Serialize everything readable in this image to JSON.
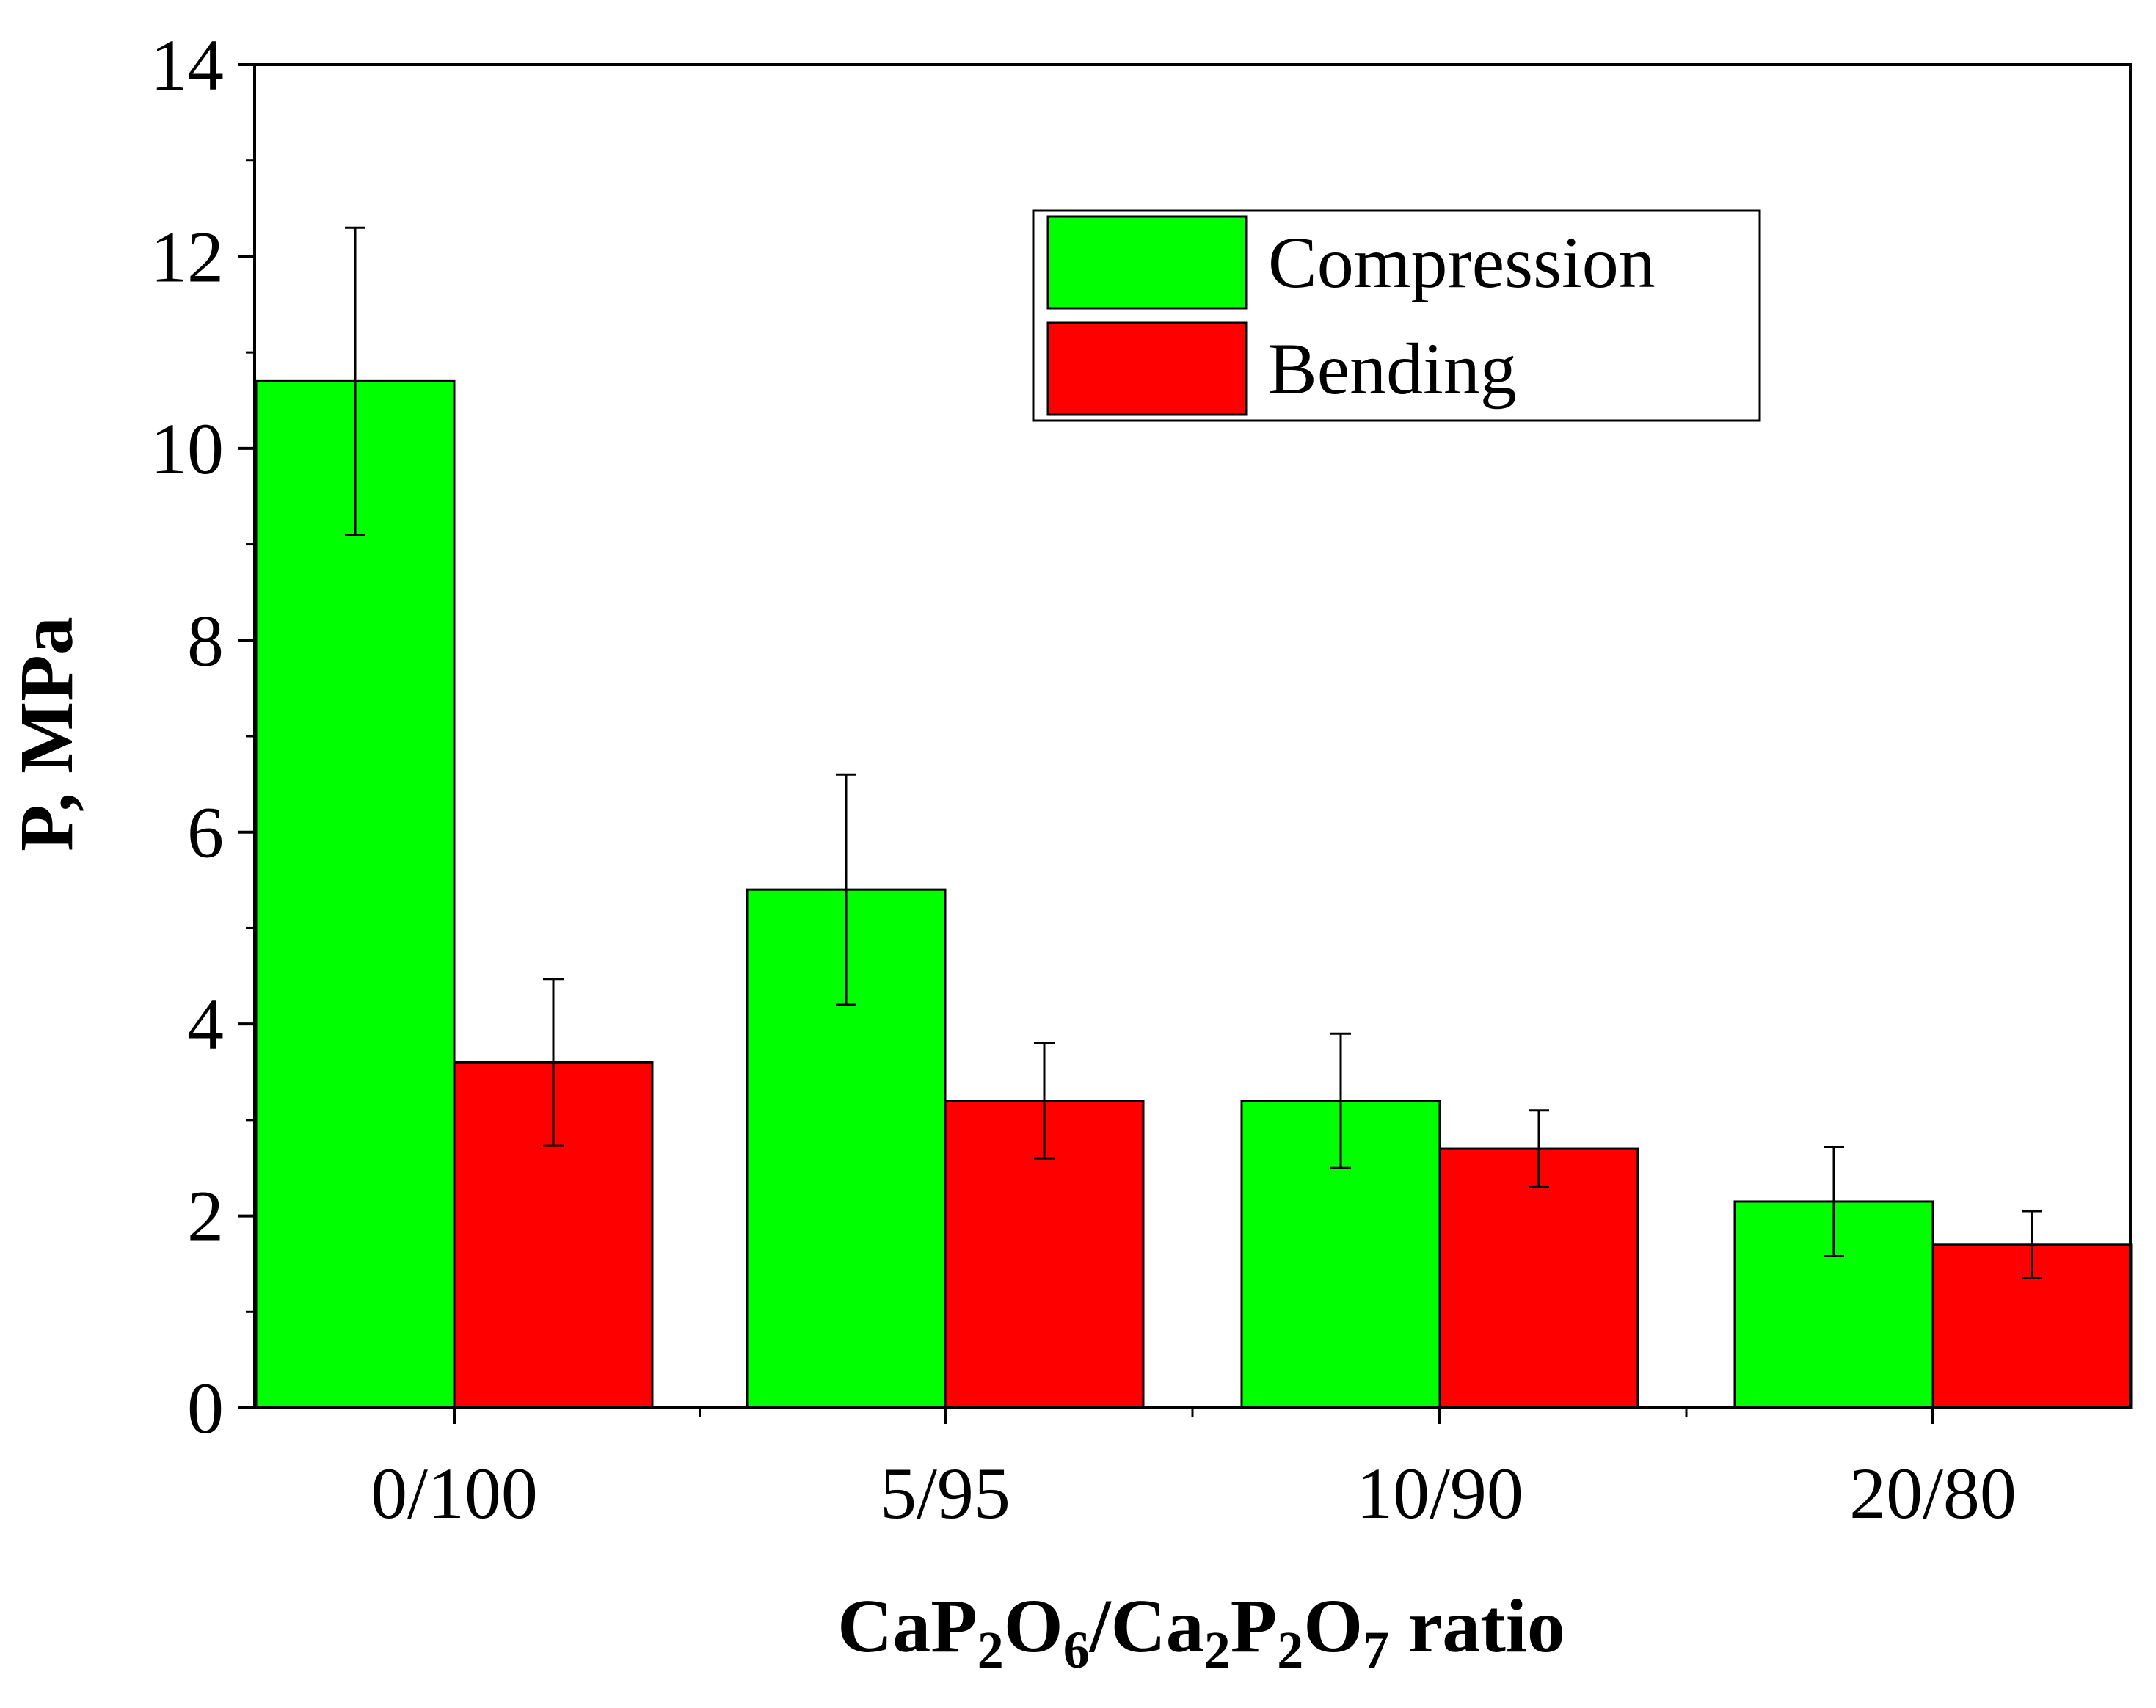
{
  "chart_data": {
    "type": "bar",
    "categories": [
      "0/100",
      "5/95",
      "10/90",
      "20/80"
    ],
    "series": [
      {
        "name": "Compression",
        "color": "#00ff00",
        "values": [
          10.7,
          5.4,
          3.2,
          2.15
        ],
        "error": [
          1.6,
          1.2,
          0.7,
          0.57
        ]
      },
      {
        "name": "Bending",
        "color": "#ff0000",
        "values": [
          3.6,
          3.2,
          2.7,
          1.7
        ],
        "error": [
          0.87,
          0.6,
          0.4,
          0.35
        ]
      }
    ],
    "ylim": [
      0,
      14
    ],
    "yticks": [
      0,
      2,
      4,
      6,
      8,
      10,
      12,
      14
    ],
    "yticklabels": [
      "0",
      "2",
      "4",
      "6",
      "8",
      "10",
      "12",
      "14"
    ],
    "ylabel": "P, MPa",
    "xlabel": {
      "parts": [
        {
          "t": "CaP",
          "sub": false
        },
        {
          "t": "2",
          "sub": true
        },
        {
          "t": "O",
          "sub": false
        },
        {
          "t": "6",
          "sub": true
        },
        {
          "t": "/Ca",
          "sub": false
        },
        {
          "t": "2",
          "sub": true
        },
        {
          "t": "P",
          "sub": false
        },
        {
          "t": "2",
          "sub": true
        },
        {
          "t": "O",
          "sub": false
        },
        {
          "t": "7",
          "sub": true
        },
        {
          "t": " ratio",
          "sub": false
        }
      ]
    },
    "legend_position": "top-right",
    "grid": false
  }
}
